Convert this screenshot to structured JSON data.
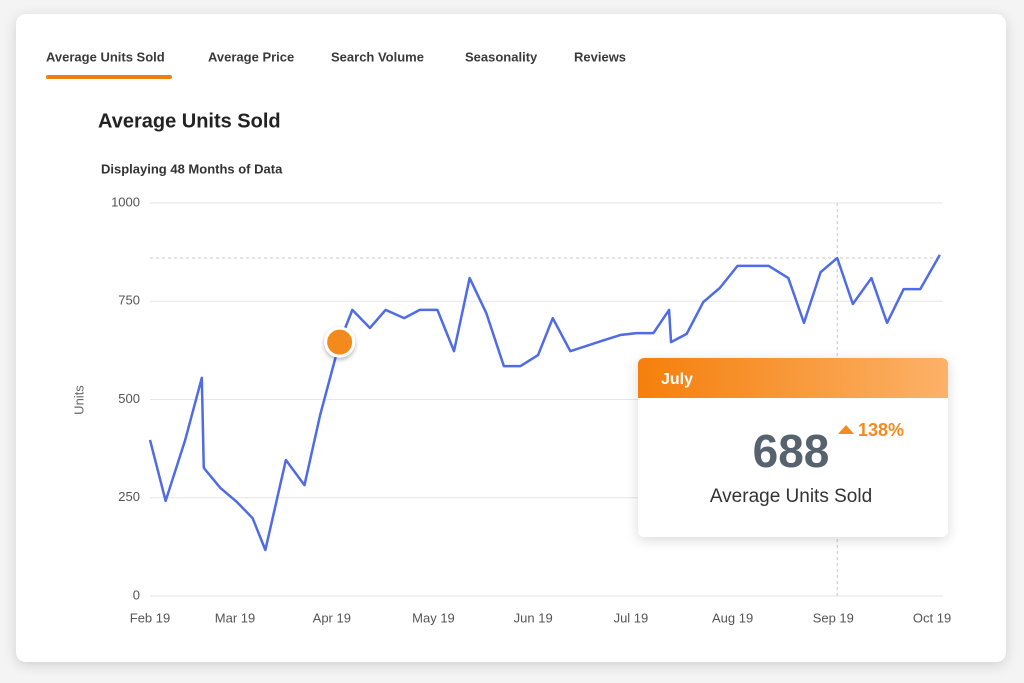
{
  "tabs": [
    "Average Units Sold",
    "Average Price",
    "Search Volume",
    "Seasonality",
    "Reviews"
  ],
  "chart_data": {
    "type": "line",
    "title": "Average Units Sold",
    "subtitle": "Displaying 48 Months of Data",
    "y_label": "Units",
    "x": [
      0,
      0.16,
      0.36,
      0.53,
      0.55,
      0.72,
      0.89,
      1.05,
      1.18,
      1.39,
      1.58,
      1.74,
      1.94,
      2.07,
      2.25,
      2.41,
      2.6,
      2.76,
      2.94,
      3.11,
      3.27,
      3.44,
      3.62,
      3.79,
      3.97,
      4.12,
      4.3,
      4.62,
      4.81,
      4.98,
      5.15,
      5.31,
      5.33,
      5.49,
      5.66,
      5.83,
      6.01,
      6.17,
      6.33,
      6.53,
      6.69,
      6.86,
      7.03,
      7.19,
      7.38,
      7.54,
      7.71,
      7.88,
      8.08
    ],
    "series": [
      {
        "name": "Average Units Sold",
        "color": "#4f6be6",
        "values": [
          397,
          242,
          397,
          555,
          326,
          275,
          239,
          198,
          117,
          346,
          282,
          460,
          646,
          728,
          682,
          728,
          707,
          728,
          728,
          623,
          809,
          720,
          585,
          585,
          613,
          707,
          623,
          649,
          664,
          669,
          669,
          728,
          646,
          667,
          748,
          784,
          840,
          840,
          840,
          809,
          695,
          824,
          860,
          743,
          809,
          695,
          781,
          781,
          868
        ]
      }
    ],
    "xlim": [
      0,
      8.1
    ],
    "xticks": [
      {
        "value": 0,
        "label": "Feb 19"
      },
      {
        "value": 0.87,
        "label": "Mar 19"
      },
      {
        "value": 1.86,
        "label": "Apr 19"
      },
      {
        "value": 2.9,
        "label": "May 19"
      },
      {
        "value": 3.92,
        "label": "Jun 19"
      },
      {
        "value": 4.92,
        "label": "Jul 19"
      },
      {
        "value": 5.96,
        "label": "Aug 19"
      },
      {
        "value": 6.99,
        "label": "Sep 19"
      },
      {
        "value": 8,
        "label": "Oct 19"
      }
    ],
    "ylim": [
      0,
      1000
    ],
    "yticks": [
      0,
      250,
      500,
      750,
      1000
    ],
    "grid": true,
    "marker_color": "#f58a1f"
  },
  "tooltip": {
    "title": "July",
    "value": "688",
    "change": "138%",
    "label": "Average Units Sold"
  }
}
